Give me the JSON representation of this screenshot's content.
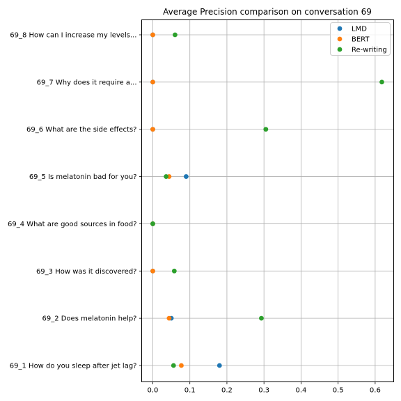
{
  "chart_data": {
    "type": "scatter",
    "title": "Average Precision comparison on conversation 69",
    "xlabel": "",
    "ylabel": "",
    "xlim": [
      -0.03,
      0.65
    ],
    "xticks": [
      0.0,
      0.1,
      0.2,
      0.3,
      0.4,
      0.5,
      0.6
    ],
    "xtick_labels": [
      "0.0",
      "0.1",
      "0.2",
      "0.3",
      "0.4",
      "0.5",
      "0.6"
    ],
    "grid": true,
    "legend_position": "top-right",
    "categories": [
      "69_1 How do you sleep after jet lag?",
      "69_2 Does melatonin help?",
      "69_3 How was it discovered?",
      "69_4 What are good sources in food?",
      "69_5 Is melatonin bad for you?",
      "69_6 What are the side effects?",
      "69_7 Why does it require a...",
      "69_8 How can I increase my levels..."
    ],
    "series": [
      {
        "name": "LMD",
        "color": "#1f77b4",
        "values": [
          0.18,
          0.05,
          0.0,
          0.0,
          0.09,
          0.0,
          0.0,
          0.0
        ]
      },
      {
        "name": "BERT",
        "color": "#ff7f0e",
        "values": [
          0.077,
          0.044,
          0.0,
          0.0,
          0.044,
          0.0,
          0.0,
          0.0
        ]
      },
      {
        "name": "Re-writing",
        "color": "#2ca02c",
        "values": [
          0.056,
          0.293,
          0.058,
          0.0,
          0.036,
          0.305,
          0.618,
          0.06
        ]
      }
    ]
  }
}
